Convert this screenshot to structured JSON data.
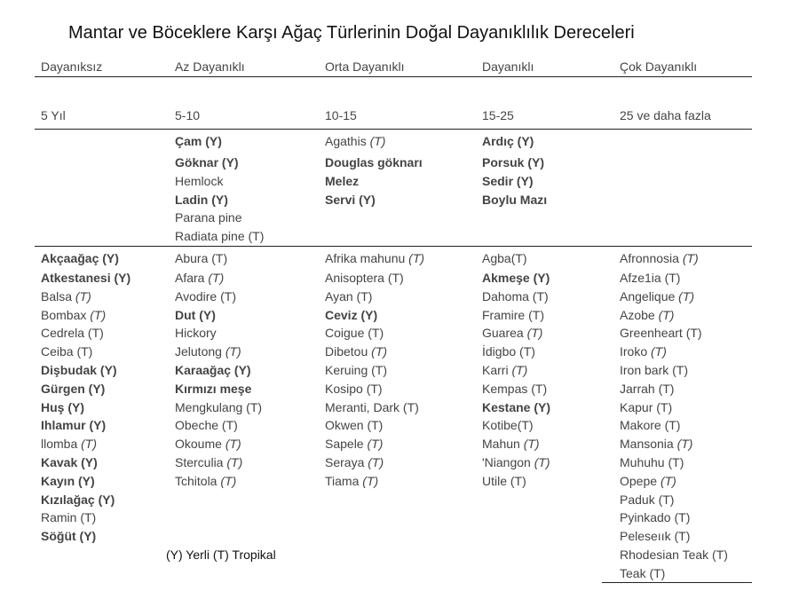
{
  "title": "Mantar ve Böceklere Karşı Ağaç Türlerinin Doğal Dayanıklılık Dereceleri",
  "columns": [
    {
      "header": "Dayanıksız",
      "years": "5 Yıl"
    },
    {
      "header": "Az Dayanıklı",
      "years": "5-10"
    },
    {
      "header": "Orta Dayanıklı",
      "years": "10-15"
    },
    {
      "header": "Dayanıklı",
      "years": "15-25"
    },
    {
      "header": "Çok Dayanıklı",
      "years": "25 ve daha fazla"
    }
  ],
  "section2": [
    [],
    [
      {
        "name": "Çam (Y)",
        "bold": true
      },
      {
        "name": "Göknar (Y)",
        "bold": true
      },
      {
        "name": "Hemlock",
        "bold": false
      },
      {
        "name": "Ladin (Y)",
        "bold": true
      },
      {
        "name": "Parana pine",
        "bold": false
      },
      {
        "name": "Radiata pine (T)",
        "bold": false
      }
    ],
    [
      {
        "name": "Agathis ",
        "tag": "(T)",
        "bold": false
      },
      {
        "name": "Douglas göknarı",
        "bold": true
      },
      {
        "name": "Melez",
        "bold": true
      },
      {
        "name": "Servi (Y)",
        "bold": true
      }
    ],
    [
      {
        "name": "Ardıç (Y)",
        "bold": true
      },
      {
        "name": "Porsuk (Y)",
        "bold": true
      },
      {
        "name": "Sedir (Y)",
        "bold": true
      },
      {
        "name": "Boylu Mazı",
        "bold": true
      }
    ],
    []
  ],
  "section3": [
    [
      {
        "name": "Akçaağaç (Y)",
        "bold": true
      },
      {
        "name": "Atkestanesi (Y)",
        "bold": true
      },
      {
        "name": "Balsa ",
        "tag": "(T)",
        "bold": false
      },
      {
        "name": "Bombax ",
        "tag": "(T)",
        "bold": false
      },
      {
        "name": "Cedrela (T)",
        "bold": false
      },
      {
        "name": "Ceiba (T)",
        "bold": false
      },
      {
        "name": "Dişbudak (Y)",
        "bold": true
      },
      {
        "name": "Gürgen (Y)",
        "bold": true
      },
      {
        "name": "Huş (Y)",
        "bold": true
      },
      {
        "name": "Ihlamur (Y)",
        "bold": true
      },
      {
        "name": "llomba ",
        "tag": "(T)",
        "bold": false
      },
      {
        "name": "Kavak (Y)",
        "bold": true
      },
      {
        "name": "Kayın (Y)",
        "bold": true
      },
      {
        "name": "Kızılağaç (Y)",
        "bold": true
      },
      {
        "name": "Ramin (T)",
        "bold": false
      },
      {
        "name": "Söğüt (Y)",
        "bold": true
      }
    ],
    [
      {
        "name": "Abura (T)",
        "bold": false
      },
      {
        "name": "Afara ",
        "tag": "(T)",
        "bold": false
      },
      {
        "name": "Avodire (T)",
        "bold": false
      },
      {
        "name": "Dut (Y)",
        "bold": true
      },
      {
        "name": "Hickory",
        "bold": false
      },
      {
        "name": "Jelutong ",
        "tag": "(T)",
        "bold": false
      },
      {
        "name": "Karaağaç (Y)",
        "bold": true
      },
      {
        "name": "Kırmızı meşe",
        "bold": true
      },
      {
        "name": "Mengkulang (T)",
        "bold": false
      },
      {
        "name": "Obeche (T)",
        "bold": false
      },
      {
        "name": "Okoume ",
        "tag": "(T)",
        "bold": false
      },
      {
        "name": "Sterculia ",
        "tag": "(T)",
        "bold": false
      },
      {
        "name": "Tchitola ",
        "tag": "(T)",
        "bold": false
      }
    ],
    [
      {
        "name": "Afrika mahunu ",
        "tag": "(T)",
        "bold": false
      },
      {
        "name": "Anisoptera (T)",
        "bold": false
      },
      {
        "name": "Ayan (T)",
        "bold": false
      },
      {
        "name": "Ceviz (Y)",
        "bold": true
      },
      {
        "name": "Coigue (T)",
        "bold": false
      },
      {
        "name": "Dibetou ",
        "tag": "(T)",
        "bold": false
      },
      {
        "name": "Keruing (T)",
        "bold": false
      },
      {
        "name": "Kosipo (T)",
        "bold": false
      },
      {
        "name": "Meranti, Dark (T)",
        "bold": false
      },
      {
        "name": "Okwen (T)",
        "bold": false
      },
      {
        "name": "Sapele ",
        "tag": "(T)",
        "bold": false
      },
      {
        "name": "Seraya ",
        "tag": "(T)",
        "bold": false
      },
      {
        "name": "Tiama ",
        "tag": "(T)",
        "bold": false
      }
    ],
    [
      {
        "name": "Agba(T)",
        "bold": false
      },
      {
        "name": "Akmeşe (Y)",
        "bold": true
      },
      {
        "name": "Dahoma (T)",
        "bold": false
      },
      {
        "name": "Framire (T)",
        "bold": false
      },
      {
        "name": "Guarea ",
        "tag": "(T)",
        "bold": false
      },
      {
        "name": "İdigbo (T)",
        "bold": false
      },
      {
        "name": "Karri ",
        "tag": "(T)",
        "bold": false
      },
      {
        "name": "Kempas (T)",
        "bold": false
      },
      {
        "name": "Kestane (Y)",
        "bold": true
      },
      {
        "name": "Kotibe(T)",
        "bold": false
      },
      {
        "name": "Mahun ",
        "tag": "(T)",
        "bold": false
      },
      {
        "name": "'Niangon ",
        "tag": "(T)",
        "bold": false
      },
      {
        "name": "Utile (T)",
        "bold": false
      }
    ],
    [
      {
        "name": "Afronnosia ",
        "tag": "(T)",
        "bold": false
      },
      {
        "name": "Afze1ia (T)",
        "bold": false
      },
      {
        "name": "Angelique ",
        "tag": "(T)",
        "bold": false
      },
      {
        "name": "Azobe ",
        "tag": "(T)",
        "bold": false
      },
      {
        "name": "Greenheart (T)",
        "bold": false
      },
      {
        "name": "Iroko ",
        "tag": "(T)",
        "bold": false
      },
      {
        "name": "Iron bark (T)",
        "bold": false
      },
      {
        "name": "Jarrah (T)",
        "bold": false
      },
      {
        "name": "Kapur (T)",
        "bold": false
      },
      {
        "name": "Makore (T)",
        "bold": false
      },
      {
        "name": "Mansonia ",
        "tag": "(T)",
        "bold": false
      },
      {
        "name": "Muhuhu (T)",
        "bold": false
      },
      {
        "name": "Opepe ",
        "tag": "(T)",
        "bold": false
      },
      {
        "name": "Paduk (T)",
        "bold": false
      },
      {
        "name": "Pyinkado (T)",
        "bold": false
      },
      {
        "name": "Peleseıık (T)",
        "bold": false
      },
      {
        "name": "Rhodesian Teak (T)",
        "bold": false
      },
      {
        "name": "Teak (T)",
        "bold": false
      }
    ]
  ],
  "legend": "(Y) Yerli  (T) Tropikal"
}
